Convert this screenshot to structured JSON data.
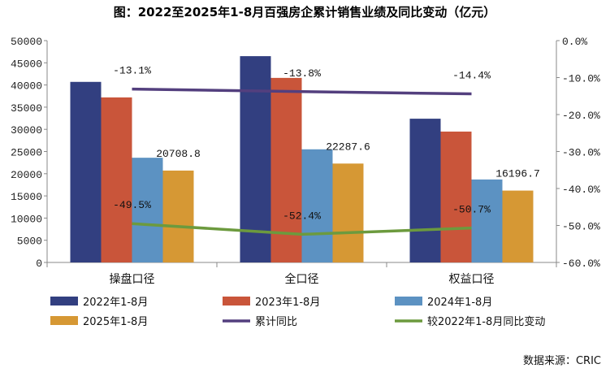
{
  "chart_data": {
    "type": "bar",
    "title": "图：2022至2025年1-8月百强房企累计销售业绩及同比变动（亿元）",
    "categories": [
      "操盘口径",
      "全口径",
      "权益口径"
    ],
    "ylim": [
      0,
      50000
    ],
    "yticks": [
      "0",
      "5000",
      "10000",
      "15000",
      "20000",
      "25000",
      "30000",
      "35000",
      "40000",
      "45000",
      "50000"
    ],
    "y2lim": [
      -60,
      0
    ],
    "y2ticks": [
      "0.0%",
      "-10.0%",
      "-20.0%",
      "-30.0%",
      "-40.0%",
      "-50.0%",
      "-60.0%"
    ],
    "grid": false,
    "legend_placement": "bottom",
    "series": [
      {
        "name": "2022年1-8月",
        "type": "bar",
        "color": "#323F80",
        "values": [
          40700,
          46500,
          32400
        ]
      },
      {
        "name": "2023年1-8月",
        "type": "bar",
        "color": "#C9553A",
        "values": [
          37200,
          41600,
          29500
        ]
      },
      {
        "name": "2024年1-8月",
        "type": "bar",
        "color": "#5C92C2",
        "values": [
          23600,
          25500,
          18700
        ]
      },
      {
        "name": "2025年1-8月",
        "type": "bar",
        "color": "#D69834",
        "values": [
          20708.8,
          22287.6,
          16196.7
        ],
        "labels": [
          "20708.8",
          "22287.6",
          "16196.7"
        ]
      },
      {
        "name": "累计同比",
        "type": "line",
        "axis": "right",
        "color": "#533F7E",
        "values": [
          -13.1,
          -13.8,
          -14.4
        ],
        "labels": [
          "-13.1%",
          "-13.8%",
          "-14.4%"
        ]
      },
      {
        "name": "较2022年1-8月同比变动",
        "type": "line",
        "axis": "right",
        "color": "#6C9A3E",
        "values": [
          -49.5,
          -52.4,
          -50.7
        ],
        "labels": [
          "-49.5%",
          "-52.4%",
          "-50.7%"
        ]
      }
    ],
    "source": "数据来源：CRIC"
  }
}
